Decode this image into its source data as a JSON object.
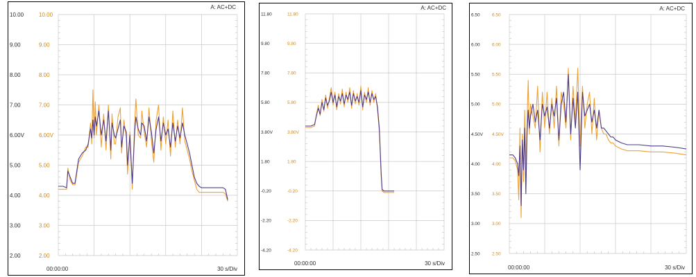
{
  "colors": {
    "grid": "#c8c8c8",
    "minor_tick": "#bdbdbd",
    "axis_text_left": "#2a2a2a",
    "axis_text_right": "#d08a1a",
    "purple_trace": "#4b3a8a",
    "orange_trace": "#f0a030",
    "brown_trace": "#8a2b2b",
    "frame": "#000000"
  },
  "chart_data": [
    {
      "type": "line",
      "mode_label": "A: AC+DC",
      "start_time": "00:00:00",
      "time_div": "30 s/Div",
      "title": "",
      "xlabel": "",
      "ylabel": "",
      "grid": true,
      "x_divisions": 5,
      "ylim": [
        2.0,
        10.0
      ],
      "ticks_left": [
        "10.00",
        "9.00",
        "8.00",
        "7.00",
        "6.00V",
        "5.00",
        "4.00",
        "3.00",
        "2.00"
      ],
      "ticks_right": [
        "10.00",
        "9.00",
        "8.00",
        "7.00",
        "6.00V",
        "5.00",
        "4.00",
        "3.00",
        "2.00"
      ],
      "x_range": [
        0,
        150
      ],
      "series": [
        {
          "color": "purple",
          "x": [
            0,
            4,
            7,
            8,
            10,
            12,
            14,
            17,
            20,
            23,
            25,
            27,
            28,
            29,
            30,
            31,
            32,
            34,
            36,
            38,
            40,
            42,
            44,
            45,
            47,
            48,
            50,
            52,
            53,
            55,
            57,
            58,
            60,
            62,
            64,
            65,
            67,
            69,
            70,
            72,
            74,
            76,
            78,
            80,
            82,
            84,
            86,
            88,
            90,
            92,
            94,
            96,
            98,
            100,
            102,
            104,
            106,
            108,
            110,
            112,
            114,
            116,
            118,
            120,
            124,
            128,
            132,
            136,
            138,
            140,
            142
          ],
          "y": [
            4.3,
            4.3,
            4.25,
            4.8,
            4.6,
            4.4,
            4.4,
            5.2,
            5.4,
            5.5,
            5.7,
            6.2,
            5.9,
            6.5,
            6.0,
            6.6,
            6.3,
            6.8,
            6.0,
            6.5,
            5.8,
            6.8,
            5.5,
            6.4,
            6.0,
            5.9,
            6.2,
            6.5,
            5.6,
            6.3,
            6.1,
            5.0,
            6.0,
            4.4,
            6.1,
            6.6,
            6.2,
            6.0,
            6.4,
            6.3,
            5.8,
            6.6,
            6.1,
            5.4,
            6.2,
            6.6,
            5.8,
            6.4,
            6.0,
            6.2,
            5.6,
            6.4,
            5.8,
            6.3,
            5.9,
            6.4,
            6.0,
            5.7,
            5.4,
            5.0,
            4.6,
            4.4,
            4.3,
            4.25,
            4.25,
            4.25,
            4.25,
            4.25,
            4.25,
            4.2,
            3.85
          ]
        },
        {
          "color": "orange",
          "x": [
            0,
            4,
            7,
            8,
            10,
            12,
            14,
            17,
            20,
            23,
            25,
            27,
            28,
            29,
            30,
            31,
            32,
            34,
            36,
            38,
            40,
            42,
            44,
            45,
            47,
            48,
            50,
            52,
            53,
            55,
            57,
            58,
            60,
            62,
            64,
            65,
            67,
            69,
            70,
            72,
            74,
            76,
            78,
            80,
            82,
            84,
            86,
            88,
            90,
            92,
            94,
            96,
            98,
            100,
            102,
            104,
            106,
            108,
            110,
            112,
            114,
            116,
            118,
            120,
            124,
            128,
            132,
            136,
            138,
            140,
            142
          ],
          "y": [
            4.2,
            4.2,
            4.2,
            4.9,
            4.5,
            4.35,
            4.35,
            5.1,
            5.3,
            5.6,
            5.6,
            6.4,
            5.7,
            7.5,
            5.9,
            7.1,
            6.0,
            7.0,
            5.6,
            6.7,
            5.5,
            7.0,
            5.2,
            6.7,
            5.7,
            5.7,
            6.6,
            6.9,
            5.4,
            6.5,
            5.9,
            4.7,
            6.1,
            4.2,
            6.4,
            7.2,
            6.0,
            5.9,
            6.8,
            6.1,
            5.6,
            6.9,
            5.8,
            5.1,
            6.5,
            7.0,
            5.5,
            6.6,
            5.7,
            6.5,
            5.3,
            6.8,
            5.6,
            6.5,
            5.7,
            6.9,
            5.8,
            5.5,
            5.2,
            4.8,
            4.5,
            4.2,
            4.1,
            4.1,
            4.1,
            4.1,
            4.1,
            4.1,
            4.1,
            4.05,
            3.8
          ]
        }
      ]
    },
    {
      "type": "line",
      "mode_label": "A: AC+DC",
      "start_time": "00:00:00",
      "time_div": "30 s/Div",
      "title": "",
      "xlabel": "",
      "ylabel": "",
      "grid": true,
      "x_divisions": 5,
      "ylim": [
        -4.2,
        11.8
      ],
      "ticks_left": [
        "11.80",
        "9.80",
        "7.80",
        "5.80",
        "3.80V",
        "1.80",
        "-0.20",
        "-2.20",
        "-4.20"
      ],
      "ticks_right": [
        "11.80",
        "9.80",
        "7.80",
        "5.80",
        "3.80V",
        "1.80",
        "-0.20",
        "-2.20",
        "-4.20"
      ],
      "x_range": [
        0,
        150
      ],
      "series": [
        {
          "color": "purple",
          "x": [
            0,
            6,
            10,
            12,
            14,
            16,
            18,
            20,
            22,
            24,
            26,
            28,
            30,
            32,
            34,
            36,
            38,
            40,
            42,
            44,
            46,
            48,
            50,
            52,
            54,
            56,
            58,
            60,
            62,
            64,
            66,
            68,
            70,
            72,
            74,
            76,
            78,
            80,
            82,
            83,
            85,
            88,
            92,
            96
          ],
          "y": [
            4.2,
            4.2,
            4.3,
            4.9,
            5.4,
            5.0,
            5.8,
            5.3,
            6.1,
            5.6,
            5.9,
            6.5,
            5.8,
            6.3,
            5.5,
            6.2,
            5.9,
            6.4,
            5.7,
            6.3,
            6.0,
            6.5,
            5.6,
            6.4,
            5.9,
            6.2,
            5.8,
            6.6,
            5.5,
            6.3,
            6.0,
            6.5,
            5.8,
            6.4,
            6.0,
            6.2,
            5.5,
            4.0,
            1.0,
            -0.1,
            -0.2,
            -0.2,
            -0.2,
            -0.2
          ]
        },
        {
          "color": "orange",
          "x": [
            0,
            6,
            10,
            12,
            14,
            16,
            18,
            20,
            22,
            24,
            26,
            28,
            30,
            32,
            34,
            36,
            38,
            40,
            42,
            44,
            46,
            48,
            50,
            52,
            54,
            56,
            58,
            60,
            62,
            64,
            66,
            68,
            70,
            72,
            74,
            76,
            78,
            80,
            82,
            83,
            85,
            88,
            92,
            96
          ],
          "y": [
            4.1,
            4.1,
            4.2,
            5.0,
            5.6,
            4.9,
            6.0,
            5.2,
            6.3,
            5.4,
            6.1,
            6.8,
            5.6,
            6.5,
            5.3,
            6.4,
            5.7,
            6.7,
            5.5,
            6.5,
            5.8,
            6.8,
            5.4,
            6.6,
            5.7,
            6.4,
            5.6,
            6.9,
            5.3,
            6.5,
            5.8,
            6.8,
            5.6,
            6.6,
            5.8,
            6.4,
            5.3,
            3.8,
            0.8,
            -0.2,
            -0.3,
            -0.3,
            -0.3,
            -0.3
          ]
        }
      ]
    },
    {
      "type": "line",
      "mode_label": "A: AC+DC",
      "start_time": "00:00:00",
      "time_div": "30 s/Div",
      "title": "",
      "xlabel": "",
      "ylabel": "",
      "grid": true,
      "x_divisions": 5,
      "ylim": [
        2.5,
        6.5
      ],
      "ticks_left": [
        "6.50",
        "6.00",
        "5.50",
        "5.00",
        "4.50V",
        "4.00",
        "3.50",
        "3.00",
        "2.50"
      ],
      "ticks_right": [
        "6.50",
        "6.00",
        "5.50",
        "5.00",
        "4.50V",
        "4.00",
        "3.50",
        "3.00",
        "2.50"
      ],
      "x_range": [
        0,
        150
      ],
      "series": [
        {
          "color": "purple",
          "x": [
            0,
            3,
            5,
            7,
            8,
            9,
            10,
            11,
            12,
            13,
            14,
            15,
            16,
            17,
            18,
            20,
            22,
            24,
            26,
            28,
            30,
            32,
            34,
            36,
            38,
            40,
            42,
            44,
            46,
            48,
            50,
            52,
            54,
            56,
            58,
            60,
            62,
            64,
            66,
            68,
            70,
            72,
            74,
            76,
            78,
            80,
            82,
            84,
            86,
            88,
            90,
            95,
            100,
            110,
            120,
            130,
            140,
            150
          ],
          "y": [
            4.15,
            4.15,
            4.1,
            4.0,
            3.8,
            4.3,
            3.3,
            4.4,
            3.9,
            4.6,
            3.5,
            4.5,
            4.9,
            4.6,
            4.8,
            5.0,
            4.7,
            4.9,
            4.4,
            5.0,
            4.8,
            4.95,
            4.6,
            5.0,
            4.8,
            5.1,
            4.4,
            5.0,
            5.2,
            4.7,
            5.5,
            4.5,
            5.1,
            4.6,
            5.2,
            3.9,
            5.2,
            4.8,
            4.9,
            5.0,
            4.7,
            4.9,
            4.6,
            4.9,
            4.6,
            4.6,
            4.55,
            4.5,
            4.45,
            4.45,
            4.4,
            4.35,
            4.32,
            4.32,
            4.3,
            4.3,
            4.28,
            4.25
          ]
        },
        {
          "color": "orange",
          "x": [
            0,
            3,
            5,
            7,
            8,
            9,
            10,
            11,
            12,
            13,
            14,
            15,
            16,
            17,
            18,
            20,
            22,
            24,
            26,
            28,
            30,
            32,
            34,
            36,
            38,
            40,
            42,
            44,
            46,
            48,
            50,
            52,
            54,
            56,
            58,
            60,
            62,
            64,
            66,
            68,
            70,
            72,
            74,
            76,
            78,
            80,
            82,
            84,
            86,
            88,
            90,
            95,
            100,
            110,
            120,
            130,
            140,
            150
          ],
          "y": [
            4.1,
            4.1,
            4.05,
            3.9,
            3.4,
            4.6,
            3.1,
            4.5,
            3.7,
            4.9,
            3.9,
            4.7,
            5.4,
            4.5,
            5.0,
            4.8,
            4.6,
            5.3,
            4.2,
            5.2,
            4.6,
            5.2,
            4.5,
            5.1,
            4.6,
            5.3,
            4.3,
            5.2,
            5.0,
            4.6,
            5.6,
            4.4,
            5.3,
            4.7,
            5.6,
            4.3,
            5.3,
            4.6,
            5.0,
            5.2,
            4.5,
            5.1,
            4.4,
            4.9,
            4.6,
            4.5,
            4.5,
            4.4,
            4.35,
            4.35,
            4.3,
            4.25,
            4.22,
            4.22,
            4.2,
            4.2,
            4.18,
            4.15
          ]
        }
      ]
    }
  ]
}
